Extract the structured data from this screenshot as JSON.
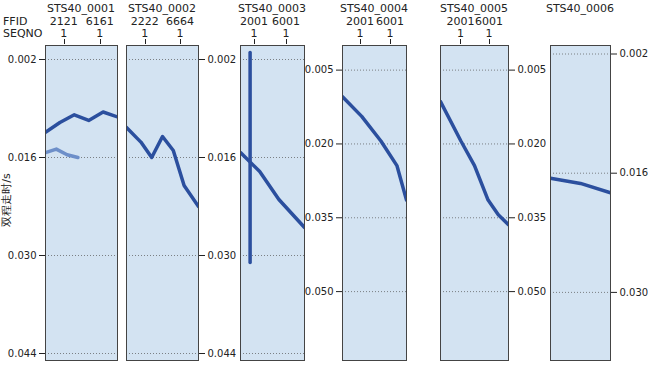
{
  "chart_data": [
    {
      "type": "line",
      "title": "STS40_0001",
      "ylabel": "双程走时/s",
      "header_labels": [
        "FFID",
        "SEQNO"
      ],
      "traces": [
        {
          "value": 0.26,
          "ffid": "2121",
          "seqno": "1"
        },
        {
          "value": 0.76,
          "ffid": "6161",
          "seqno": "1"
        }
      ],
      "xlim": [
        0,
        1
      ],
      "ylim": [
        0,
        0.045
      ],
      "yticks": [
        0.002,
        0.016,
        {
          "value": 0.03,
          "label": "0.030"
        },
        0.044
      ],
      "grid": true,
      "tick_labels": "y",
      "series": [
        {
          "color": "#2b4f9e",
          "x": [
            0,
            0.2,
            0.4,
            0.6,
            0.8,
            1
          ],
          "values": [
            0.0124,
            0.011,
            0.0099,
            0.0107,
            0.0095,
            0.0102
          ]
        },
        {
          "color": "#6d8fc9",
          "x": [
            0,
            0.15,
            0.3,
            0.45
          ],
          "values": [
            0.0153,
            0.0148,
            0.0156,
            0.016
          ]
        }
      ]
    },
    {
      "type": "line",
      "title": "STS40_0002",
      "traces": [
        {
          "value": 0.26,
          "ffid": "2222",
          "seqno": "1"
        },
        {
          "value": 0.75,
          "ffid": "6664",
          "seqno": "1"
        }
      ],
      "xlim": [
        0,
        1
      ],
      "ylim": [
        0,
        0.045
      ],
      "yticks": [
        0.002,
        0.016,
        {
          "value": 0.03,
          "label": "0.030"
        },
        0.044
      ],
      "grid": true,
      "tick_labels": "y",
      "series": [
        {
          "color": "#2b4f9e",
          "x": [
            0,
            0.2,
            0.35,
            0.5,
            0.65,
            0.8,
            1
          ],
          "values": [
            0.0117,
            0.0138,
            0.016,
            0.013,
            0.015,
            0.02,
            0.023
          ]
        }
      ]
    },
    {
      "type": "line",
      "title": "STS40_0003",
      "traces": [
        {
          "value": 0.22,
          "ffid": "2001",
          "seqno": "1"
        },
        {
          "value": 0.72,
          "ffid": "6001",
          "seqno": "1"
        }
      ],
      "xlim": [
        0,
        1
      ],
      "ylim": [
        0,
        0.045
      ],
      "yticks": [
        0.002,
        0.016,
        {
          "value": 0.03,
          "label": "0.030"
        },
        0.044
      ],
      "grid": true,
      "tick_labels": false,
      "series": [
        {
          "color": "#2b4f9e",
          "x": [
            0,
            0.3,
            0.6,
            1
          ],
          "values": [
            0.0153,
            0.018,
            0.022,
            0.026
          ]
        },
        {
          "color": "#2b4f9e",
          "x": [
            0.15,
            0.15
          ],
          "values": [
            0.001,
            0.031
          ]
        }
      ]
    },
    {
      "type": "line",
      "title": "STS40_0004",
      "traces": [
        {
          "value": 0.28,
          "ffid": "2001",
          "seqno": "1"
        },
        {
          "value": 0.75,
          "ffid": "6001",
          "seqno": "1"
        }
      ],
      "xlim": [
        0,
        1
      ],
      "ylim": [
        0,
        0.064
      ],
      "yticks": [
        0.005,
        {
          "value": 0.02,
          "label": "0.020"
        },
        0.035,
        {
          "value": 0.05,
          "label": "0.050"
        }
      ],
      "grid": true,
      "tick_labels": "y",
      "series": [
        {
          "color": "#2b4f9e",
          "x": [
            0,
            0.3,
            0.6,
            0.85,
            1
          ],
          "values": [
            0.0104,
            0.0144,
            0.0194,
            0.0244,
            0.0314
          ]
        }
      ]
    },
    {
      "type": "line",
      "title": "STS40_0005",
      "traces": [
        {
          "value": 0.3,
          "ffid": "2001",
          "seqno": "1"
        },
        {
          "value": 0.72,
          "ffid": "6001",
          "seqno": "1"
        }
      ],
      "xlim": [
        0,
        1
      ],
      "ylim": [
        0,
        0.064
      ],
      "yticks": [
        0.005,
        {
          "value": 0.02,
          "label": "0.020"
        },
        0.035,
        {
          "value": 0.05,
          "label": "0.050"
        }
      ],
      "grid": true,
      "tick_labels": "y",
      "series": [
        {
          "color": "#2b4f9e",
          "x": [
            0,
            0.3,
            0.5,
            0.7,
            0.85,
            1
          ],
          "values": [
            0.0114,
            0.0194,
            0.0244,
            0.0314,
            0.0344,
            0.0364
          ]
        }
      ]
    },
    {
      "type": "line",
      "title": "STS40_0006",
      "traces": [],
      "xlim": [
        0,
        1
      ],
      "ylim": [
        0.001,
        0.038
      ],
      "yticks": [
        0.002,
        0.016,
        {
          "value": 0.03,
          "label": "0.030"
        }
      ],
      "grid": true,
      "tick_labels": "y",
      "series": [
        {
          "color": "#2b4f9e",
          "x": [
            0,
            0.5,
            1
          ],
          "values": [
            0.0166,
            0.0172,
            0.0183
          ]
        }
      ]
    }
  ]
}
